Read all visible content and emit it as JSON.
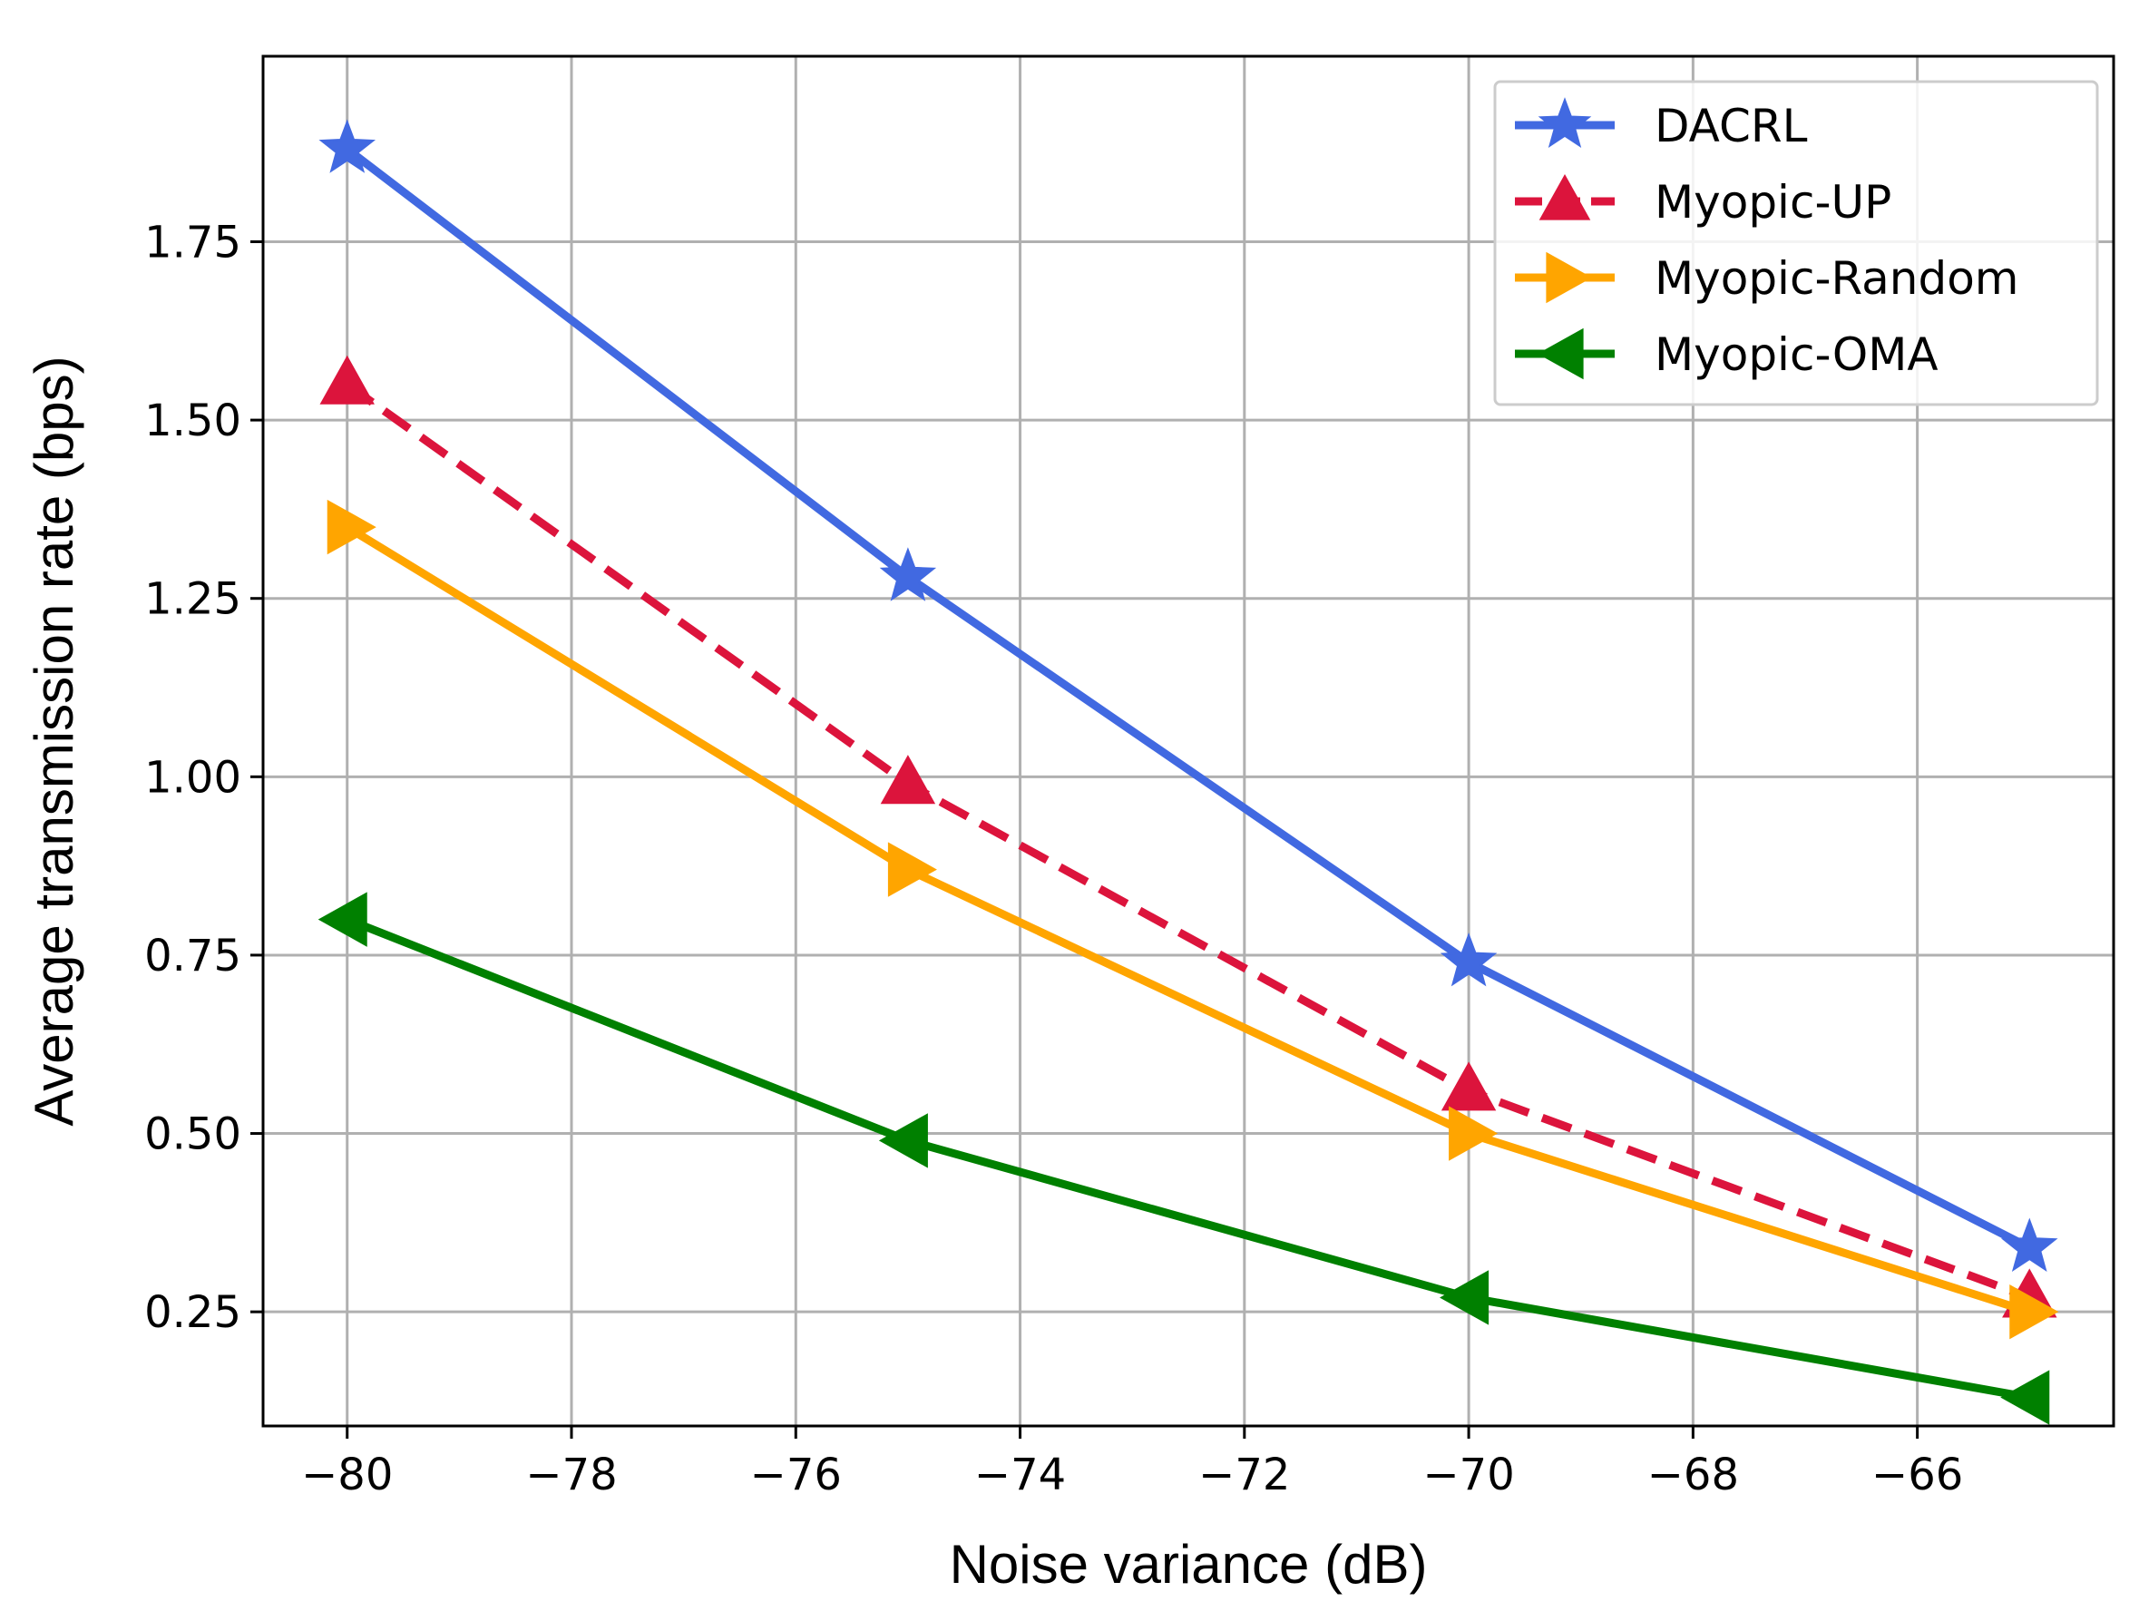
{
  "chart_data": {
    "type": "line",
    "xlabel": "Noise variance (dB)",
    "ylabel": "Average transmission rate (bps)",
    "xlim": [
      -80.75,
      -64.25
    ],
    "ylim": [
      0.09,
      2.01
    ],
    "xticks": [
      -80,
      -78,
      -76,
      -74,
      -72,
      -70,
      -68,
      -66
    ],
    "xtick_labels": [
      "−80",
      "−78",
      "−76",
      "−74",
      "−72",
      "−70",
      "−68",
      "−66"
    ],
    "yticks": [
      0.25,
      0.5,
      0.75,
      1.0,
      1.25,
      1.5,
      1.75
    ],
    "ytick_labels": [
      "0.25",
      "0.50",
      "0.75",
      "1.00",
      "1.25",
      "1.50",
      "1.75"
    ],
    "grid": true,
    "legend_position": "top-right",
    "x": [
      -80,
      -75,
      -70,
      -65
    ],
    "series": [
      {
        "name": "DACRL",
        "values": [
          1.88,
          1.28,
          0.74,
          0.34
        ],
        "color": "#4169e1",
        "marker": "star",
        "dash": "solid"
      },
      {
        "name": "Myopic-UP",
        "values": [
          1.55,
          0.99,
          0.56,
          0.27
        ],
        "color": "#dc143c",
        "marker": "triangle-up",
        "dash": "dashed"
      },
      {
        "name": "Myopic-Random",
        "values": [
          1.35,
          0.87,
          0.5,
          0.25
        ],
        "color": "#ffa500",
        "marker": "triangle-right",
        "dash": "solid"
      },
      {
        "name": "Myopic-OMA",
        "values": [
          0.8,
          0.49,
          0.27,
          0.13
        ],
        "color": "#008000",
        "marker": "triangle-left",
        "dash": "solid"
      }
    ]
  }
}
